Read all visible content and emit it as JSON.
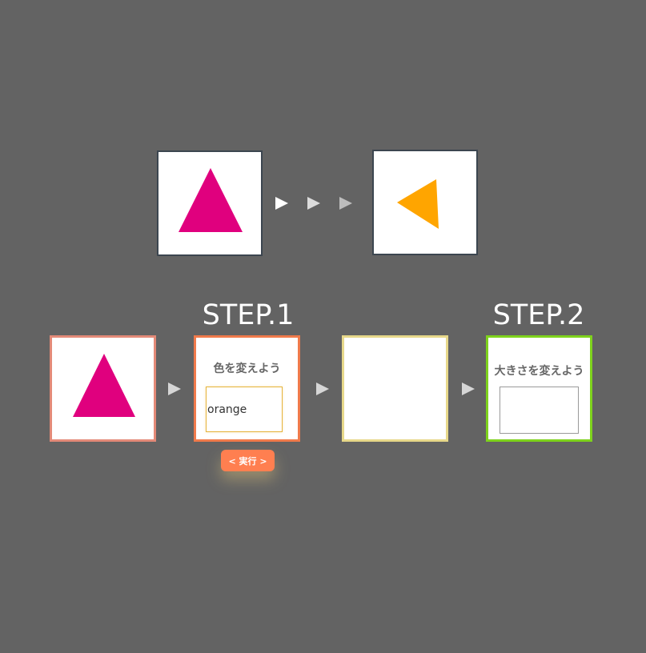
{
  "preview": {
    "before_shape": {
      "shape": "triangle",
      "color": "#e0007e",
      "rotation": "up"
    },
    "after_shape": {
      "shape": "triangle",
      "color": "#ffa500",
      "rotation": "left"
    },
    "arrow_colors": [
      "#ffffff",
      "#dcdcdc",
      "#bdbdbd"
    ]
  },
  "steps": {
    "source_shape": {
      "shape": "triangle",
      "color": "#e0007e"
    },
    "step1": {
      "title": "STEP.1",
      "heading": "色を変えよう",
      "input_value": "orange",
      "run_button": "< 実行 >"
    },
    "step2": {
      "title": "STEP.2",
      "heading": "大きさを変えよう",
      "input_value": ""
    }
  },
  "colors": {
    "background": "#636363",
    "source_border": "#e38a78",
    "step1_border": "#f07a4b",
    "result_border": "#e7d88a",
    "step2_border": "#7ed21c",
    "run_button": "#ff7f50"
  }
}
